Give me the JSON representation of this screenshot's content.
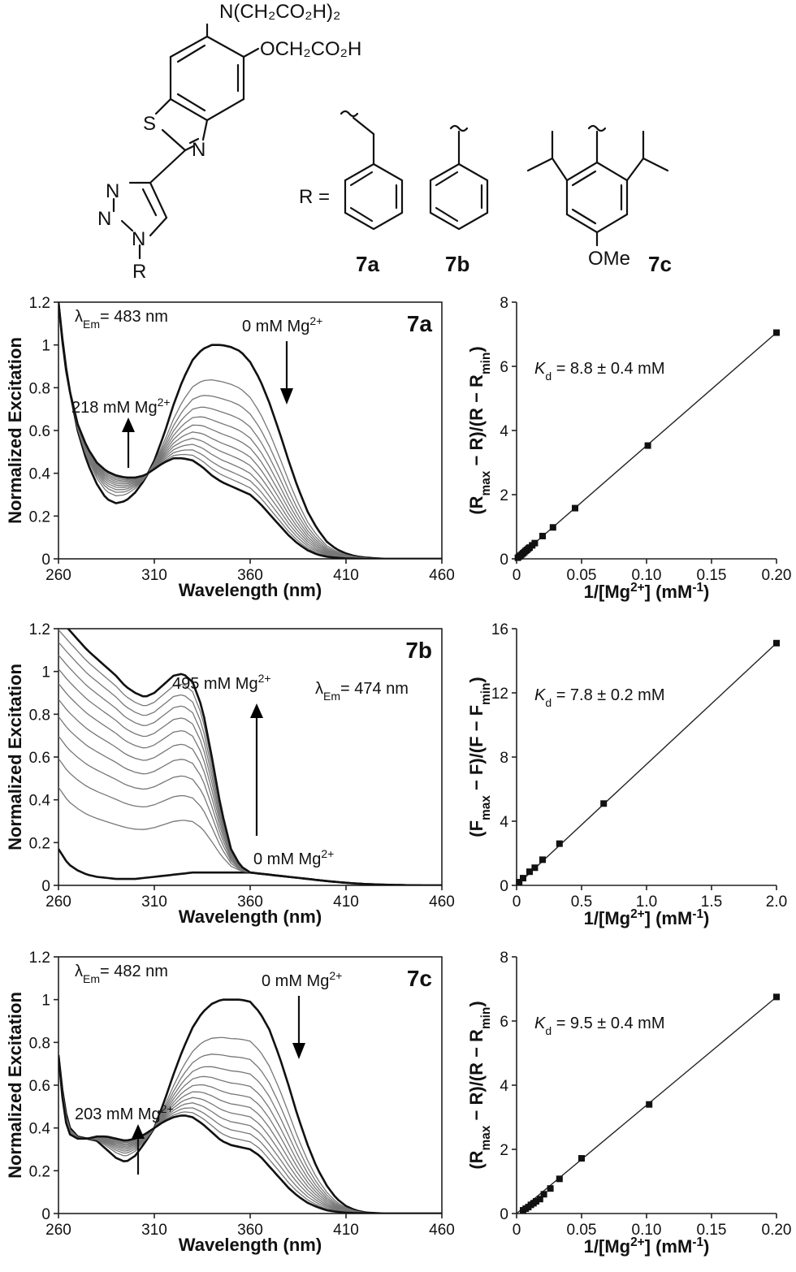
{
  "structure": {
    "substituent_1": "N(CH₂CO₂H)₂",
    "substituent_2": "OCH₂CO₂H",
    "atom_s": "S",
    "atom_n_thiazole": "N",
    "triazole_n1": "N",
    "triazole_n2": "N",
    "triazole_n3": "N",
    "r_group": "R",
    "r_equals": "R =",
    "methoxy": "OMe",
    "compounds": [
      "7a",
      "7b",
      "7c"
    ]
  },
  "chart_data": [
    {
      "id": "7a-excitation",
      "type": "line",
      "panel_label": "7a",
      "xlabel": "Wavelength (nm)",
      "ylabel": "Normalized Excitation",
      "xlim": [
        260,
        460
      ],
      "ylim": [
        0,
        1.2
      ],
      "xticks": [
        "260",
        "310",
        "360",
        "410",
        "460"
      ],
      "yticks": [
        "0",
        "0.2",
        "0.4",
        "0.6",
        "0.8",
        "1",
        "1.2"
      ],
      "emission": {
        "lambda": "λ",
        "sub": "Em",
        "value": "= 483 nm"
      },
      "annotation_top": {
        "text": "0 mM Mg",
        "sup": "2+",
        "arrow": "down"
      },
      "annotation_bottom": {
        "text": "218 mM Mg",
        "sup": "2+",
        "arrow": "up"
      },
      "mode": "decrease",
      "series_count": 12,
      "x": [
        260,
        263,
        266,
        270,
        275,
        280,
        285,
        290,
        295,
        300,
        305,
        310,
        315,
        320,
        325,
        330,
        335,
        340,
        345,
        350,
        355,
        360,
        365,
        370,
        375,
        380,
        385,
        390,
        395,
        400,
        405,
        410,
        415,
        420,
        425,
        430,
        440,
        450,
        460
      ],
      "start_curve": [
        1.2,
        0.95,
        0.78,
        0.6,
        0.45,
        0.35,
        0.28,
        0.26,
        0.27,
        0.31,
        0.37,
        0.46,
        0.58,
        0.72,
        0.84,
        0.93,
        0.98,
        1.0,
        1.0,
        0.99,
        0.97,
        0.92,
        0.84,
        0.73,
        0.6,
        0.46,
        0.33,
        0.22,
        0.14,
        0.08,
        0.045,
        0.025,
        0.012,
        0.006,
        0.003,
        0.0,
        0.0,
        0.0,
        0.0
      ],
      "end_curve": [
        1.2,
        0.93,
        0.78,
        0.63,
        0.52,
        0.45,
        0.41,
        0.39,
        0.38,
        0.38,
        0.39,
        0.42,
        0.45,
        0.47,
        0.47,
        0.46,
        0.43,
        0.39,
        0.36,
        0.34,
        0.32,
        0.3,
        0.26,
        0.21,
        0.16,
        0.11,
        0.07,
        0.04,
        0.02,
        0.01,
        0.005,
        0.002,
        0.001,
        0.0,
        0.0,
        0.0,
        0.0,
        0.0,
        0.0
      ]
    },
    {
      "id": "7a-fit",
      "type": "scatter",
      "xlabel": "1/[Mg",
      "xlabel_sup": "2+",
      "xlabel_tail": "] (mM",
      "xlabel_sup2": "-1",
      "xlabel_end": ")",
      "ylabel": "(R_max − R)/(R − R_min)",
      "ylabel_parts": [
        "(R",
        "max",
        " − R)/(R − R",
        "min",
        ")"
      ],
      "xlim": [
        0,
        0.2
      ],
      "ylim": [
        0,
        8
      ],
      "xticks": [
        "0",
        "0.05",
        "0.10",
        "0.15",
        "0.20"
      ],
      "yticks": [
        "0",
        "2",
        "4",
        "6",
        "8"
      ],
      "kd_label": {
        "k": "K",
        "sub": "d",
        "text": " = 8.8 ± 0.4 mM"
      },
      "points_x": [
        0.001,
        0.002,
        0.003,
        0.004,
        0.005,
        0.006,
        0.007,
        0.008,
        0.009,
        0.01,
        0.012,
        0.014,
        0.02,
        0.028,
        0.045,
        0.101,
        0.2
      ],
      "points_y": [
        0.035,
        0.07,
        0.1,
        0.14,
        0.175,
        0.21,
        0.25,
        0.28,
        0.32,
        0.35,
        0.42,
        0.49,
        0.71,
        0.98,
        1.58,
        3.53,
        7.05
      ],
      "fit_line": [
        [
          0,
          0.0
        ],
        [
          0.2,
          7.05
        ]
      ]
    },
    {
      "id": "7b-excitation",
      "type": "line",
      "panel_label": "7b",
      "xlabel": "Wavelength (nm)",
      "ylabel": "Normalized Excitation",
      "xlim": [
        260,
        460
      ],
      "ylim": [
        0,
        1.2
      ],
      "xticks": [
        "260",
        "310",
        "360",
        "410",
        "460"
      ],
      "yticks": [
        "0",
        "0.2",
        "0.4",
        "0.6",
        "0.8",
        "1",
        "1.2"
      ],
      "emission": {
        "lambda": "λ",
        "sub": "Em",
        "value": "= 474 nm"
      },
      "annotation_top": {
        "text": "495 mM Mg",
        "sup": "2+",
        "arrow": "up"
      },
      "annotation_bottom": {
        "text": "0 mM Mg",
        "sup": "2+",
        "arrow": ""
      },
      "mode": "increase",
      "series_count": 12,
      "x": [
        260,
        265,
        270,
        275,
        280,
        285,
        290,
        295,
        300,
        305,
        310,
        315,
        320,
        325,
        330,
        335,
        340,
        345,
        350,
        355,
        360,
        365,
        370,
        380,
        390,
        400,
        410,
        420,
        430,
        440,
        450,
        460
      ],
      "start_curve": [
        0.17,
        0.1,
        0.07,
        0.05,
        0.04,
        0.035,
        0.03,
        0.03,
        0.03,
        0.035,
        0.04,
        0.045,
        0.05,
        0.055,
        0.06,
        0.06,
        0.06,
        0.06,
        0.06,
        0.06,
        0.06,
        0.055,
        0.05,
        0.04,
        0.03,
        0.02,
        0.012,
        0.006,
        0.003,
        0.001,
        0.0,
        0.0
      ],
      "end_curve": [
        1.25,
        1.2,
        1.15,
        1.1,
        1.06,
        1.02,
        0.98,
        0.93,
        0.9,
        0.88,
        0.9,
        0.94,
        0.98,
        0.99,
        0.95,
        0.83,
        0.6,
        0.35,
        0.17,
        0.09,
        0.06,
        0.055,
        0.05,
        0.04,
        0.03,
        0.02,
        0.012,
        0.006,
        0.003,
        0.001,
        0.0,
        0.0
      ]
    },
    {
      "id": "7b-fit",
      "type": "scatter",
      "xlabel": "1/[Mg",
      "xlabel_sup": "2+",
      "xlabel_tail": "] (mM",
      "xlabel_sup2": "-1",
      "xlabel_end": ")",
      "ylabel": "(F_max − F)/(F − F_min)",
      "ylabel_parts": [
        "(F",
        "max",
        " − F)/(F − F",
        "min",
        ")"
      ],
      "xlim": [
        0,
        2.0
      ],
      "ylim": [
        0,
        16
      ],
      "xticks": [
        "0",
        "0.5",
        "1.0",
        "1.5",
        "2.0"
      ],
      "yticks": [
        "0",
        "4",
        "8",
        "12",
        "16"
      ],
      "kd_label": {
        "k": "K",
        "sub": "d",
        "text": " = 7.8 ± 0.2 mM"
      },
      "points_x": [
        0.02,
        0.05,
        0.1,
        0.14,
        0.2,
        0.33,
        0.67,
        2.0
      ],
      "points_y": [
        0.2,
        0.45,
        0.85,
        1.1,
        1.6,
        2.6,
        5.1,
        15.1
      ],
      "fit_line": [
        [
          0,
          0.0
        ],
        [
          2.0,
          15.1
        ]
      ]
    },
    {
      "id": "7c-excitation",
      "type": "line",
      "panel_label": "7c",
      "xlabel": "Wavelength (nm)",
      "ylabel": "Normalized Excitation",
      "xlim": [
        260,
        460
      ],
      "ylim": [
        0,
        1.2
      ],
      "xticks": [
        "260",
        "310",
        "360",
        "410",
        "460"
      ],
      "yticks": [
        "0",
        "0.2",
        "0.4",
        "0.6",
        "0.8",
        "1",
        "1.2"
      ],
      "emission": {
        "lambda": "λ",
        "sub": "Em",
        "value": "= 482 nm"
      },
      "annotation_top": {
        "text": "0 mM Mg",
        "sup": "2+",
        "arrow": "down"
      },
      "annotation_bottom": {
        "text": "203 mM Mg",
        "sup": "2+",
        "arrow": "up"
      },
      "mode": "decrease",
      "series_count": 12,
      "x": [
        260,
        263,
        266,
        270,
        275,
        280,
        285,
        290,
        295,
        300,
        305,
        310,
        315,
        320,
        325,
        330,
        335,
        340,
        345,
        350,
        355,
        360,
        365,
        370,
        375,
        380,
        385,
        390,
        395,
        400,
        405,
        410,
        415,
        420,
        425,
        430,
        440,
        450,
        460
      ],
      "start_curve": [
        0.74,
        0.5,
        0.4,
        0.36,
        0.35,
        0.34,
        0.3,
        0.26,
        0.24,
        0.27,
        0.33,
        0.4,
        0.52,
        0.65,
        0.77,
        0.87,
        0.94,
        0.98,
        1.0,
        1.0,
        1.0,
        0.99,
        0.94,
        0.86,
        0.74,
        0.6,
        0.45,
        0.32,
        0.21,
        0.13,
        0.07,
        0.035,
        0.015,
        0.005,
        0.002,
        0.0,
        0.0,
        0.0,
        0.0
      ],
      "end_curve": [
        0.74,
        0.45,
        0.37,
        0.35,
        0.35,
        0.36,
        0.36,
        0.35,
        0.34,
        0.35,
        0.37,
        0.4,
        0.43,
        0.45,
        0.46,
        0.45,
        0.42,
        0.38,
        0.34,
        0.32,
        0.31,
        0.3,
        0.27,
        0.22,
        0.17,
        0.12,
        0.08,
        0.05,
        0.03,
        0.015,
        0.008,
        0.004,
        0.002,
        0.001,
        0.0,
        0.0,
        0.0,
        0.0,
        0.0
      ]
    },
    {
      "id": "7c-fit",
      "type": "scatter",
      "xlabel": "1/[Mg",
      "xlabel_sup": "2+",
      "xlabel_tail": "] (mM",
      "xlabel_sup2": "-1",
      "xlabel_end": ")",
      "ylabel": "(R_max − R)/(R − R_min)",
      "ylabel_parts": [
        "(R",
        "max",
        " − R)/(R − R",
        "min",
        ")"
      ],
      "xlim": [
        0,
        0.2
      ],
      "ylim": [
        0,
        8
      ],
      "xticks": [
        "0",
        "0.05",
        "0.10",
        "0.15",
        "0.20"
      ],
      "yticks": [
        "0",
        "2",
        "4",
        "6",
        "8"
      ],
      "kd_label": {
        "k": "K",
        "sub": "d",
        "text": " = 9.5 ± 0.4 mM"
      },
      "points_x": [
        0.005,
        0.007,
        0.009,
        0.011,
        0.013,
        0.015,
        0.018,
        0.021,
        0.026,
        0.033,
        0.05,
        0.102,
        0.2
      ],
      "points_y": [
        0.1,
        0.15,
        0.2,
        0.27,
        0.32,
        0.38,
        0.45,
        0.6,
        0.78,
        1.08,
        1.72,
        3.4,
        6.75
      ],
      "fit_line": [
        [
          0,
          0.0
        ],
        [
          0.2,
          6.75
        ]
      ]
    }
  ]
}
